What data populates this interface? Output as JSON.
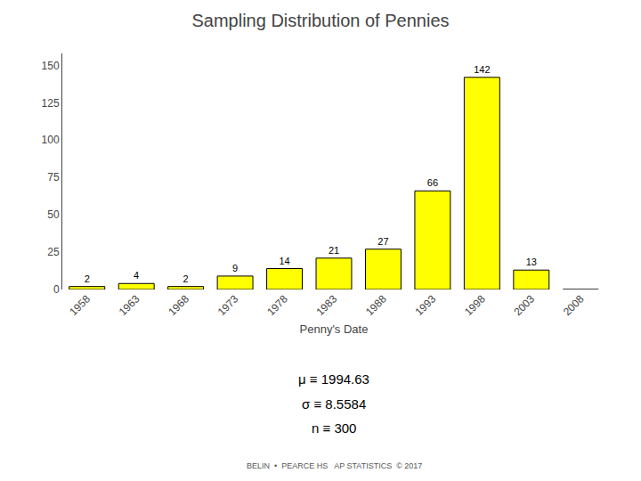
{
  "chart_data": {
    "type": "bar",
    "title": "Sampling Distribution of Pennies",
    "xlabel": "Penny's Date",
    "categories": [
      "1958",
      "1963",
      "1968",
      "1973",
      "1978",
      "1983",
      "1988",
      "1993",
      "1998",
      "2003",
      "2008"
    ],
    "values": [
      2,
      4,
      2,
      9,
      14,
      21,
      27,
      66,
      142,
      13,
      0
    ],
    "data_labels": true,
    "value_labels": [
      "2",
      "4",
      "2",
      "9",
      "14",
      "21",
      "27",
      "66",
      "142",
      "13",
      null
    ],
    "color": "#ffff00",
    "ylim": [
      0,
      158
    ],
    "yticks": [
      0,
      25,
      50,
      75,
      100,
      125,
      150
    ],
    "grid": false,
    "annotations": [
      "μ ≡ 1994.63",
      "σ ≡ 8.5584",
      "n ≡ 300",
      "BELIN  •  PEARCE HS   AP STATISTICS  © 2017"
    ]
  }
}
